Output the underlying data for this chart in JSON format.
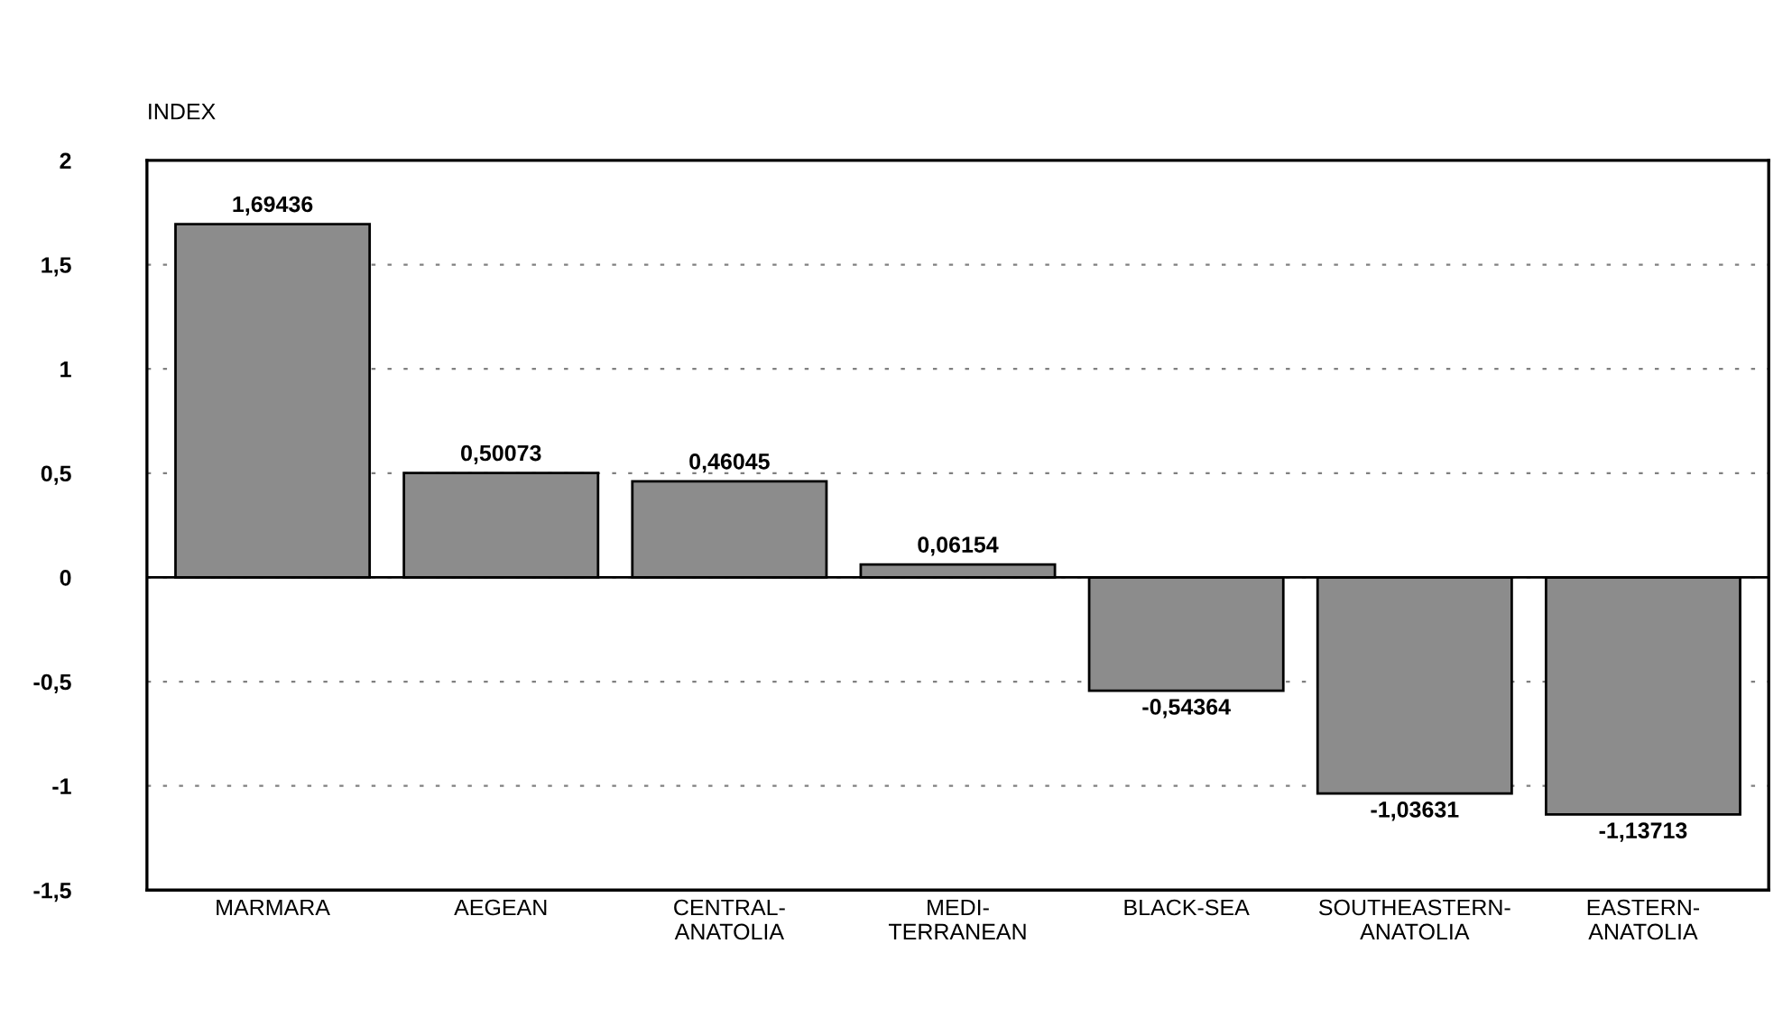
{
  "chart_data": {
    "type": "bar",
    "ylabel": "INDEX",
    "categories": [
      "MARMARA",
      "AEGEAN",
      "CENTRAL-\nANATOLIA",
      "MEDI-\nTERRANEAN",
      "BLACK-SEA",
      "SOUTHEASTERN-\nANATOLIA",
      "EASTERN-\nANATOLIA"
    ],
    "values": [
      1.69436,
      0.50073,
      0.46045,
      0.06154,
      -0.54364,
      -1.03631,
      -1.13713
    ],
    "value_labels": [
      "1,69436",
      "0,50073",
      "0,46045",
      "0,06154",
      "-0,54364",
      "-1,03631",
      "-1,13713"
    ],
    "color": "#8c8c8c",
    "ylim": [
      -1.5,
      2
    ],
    "yticks": [
      {
        "value": -1.5,
        "label": "-1,5"
      },
      {
        "value": -1,
        "label": "-1"
      },
      {
        "value": -0.5,
        "label": "-0,5"
      },
      0,
      {
        "value": 0.5,
        "label": "0,5"
      },
      1,
      {
        "value": 1.5,
        "label": "1,5"
      },
      2
    ],
    "grid": "y",
    "legend": false
  }
}
